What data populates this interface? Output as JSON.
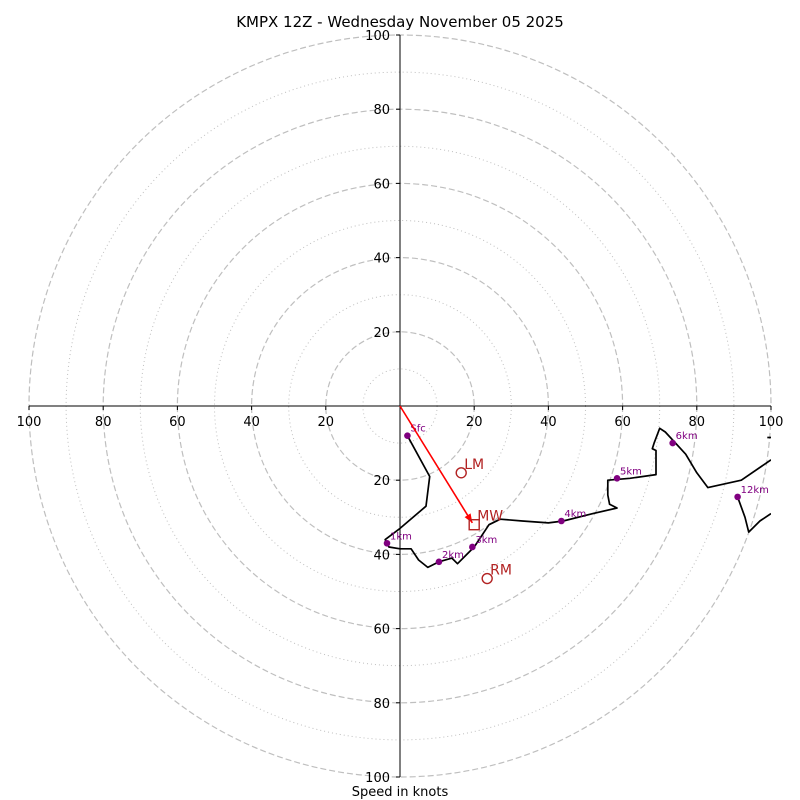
{
  "chart_data": {
    "type": "hodograph",
    "title": "KMPX 12Z - Wednesday November 05 2025",
    "xlabel": "Speed in knots",
    "ylabel": "",
    "units": "knots",
    "xlim": [
      -100,
      100
    ],
    "ylim": [
      -100,
      100
    ],
    "major_rings": [
      20,
      40,
      60,
      80,
      100
    ],
    "minor_rings": [
      10,
      30,
      50,
      70,
      90
    ],
    "x_ticks": [
      {
        "value": -100,
        "label": "100"
      },
      {
        "value": -80,
        "label": "80"
      },
      {
        "value": -60,
        "label": "60"
      },
      {
        "value": -40,
        "label": "40"
      },
      {
        "value": -20,
        "label": "20"
      },
      {
        "value": 20,
        "label": "20"
      },
      {
        "value": 40,
        "label": "40"
      },
      {
        "value": 60,
        "label": "60"
      },
      {
        "value": 80,
        "label": "80"
      },
      {
        "value": 100,
        "label": "100"
      }
    ],
    "y_ticks": [
      {
        "value": 100,
        "label": "100"
      },
      {
        "value": 80,
        "label": "80"
      },
      {
        "value": 60,
        "label": "60"
      },
      {
        "value": 40,
        "label": "40"
      },
      {
        "value": 20,
        "label": "20"
      },
      {
        "value": -20,
        "label": "20"
      },
      {
        "value": -40,
        "label": "40"
      },
      {
        "value": -60,
        "label": "60"
      },
      {
        "value": -80,
        "label": "80"
      },
      {
        "value": -100,
        "label": "100"
      }
    ],
    "hodograph_segments": [
      {
        "name": "profile-main",
        "color": "#000000",
        "points": [
          [
            2,
            -8
          ],
          [
            8,
            -19
          ],
          [
            7,
            -27
          ],
          [
            0,
            -33
          ],
          [
            -4,
            -36
          ],
          [
            -3,
            -38
          ],
          [
            0,
            -38.5
          ],
          [
            3,
            -38.5
          ],
          [
            5,
            -41.5
          ],
          [
            7.5,
            -43.5
          ],
          [
            10.5,
            -42
          ],
          [
            14,
            -41
          ],
          [
            15.5,
            -42.5
          ],
          [
            18,
            -40
          ],
          [
            20,
            -38
          ],
          [
            24,
            -32
          ],
          [
            27,
            -30.5
          ],
          [
            33,
            -31
          ],
          [
            40,
            -31.5
          ],
          [
            44,
            -31
          ],
          [
            52,
            -29
          ],
          [
            58.5,
            -27.5
          ],
          [
            56.5,
            -26.5
          ],
          [
            56,
            -24
          ],
          [
            56,
            -20
          ],
          [
            62,
            -19.5
          ],
          [
            69,
            -18.5
          ],
          [
            69,
            -12
          ],
          [
            68,
            -11.5
          ],
          [
            68.5,
            -10
          ],
          [
            70,
            -6
          ],
          [
            71.5,
            -7
          ],
          [
            77,
            -13
          ],
          [
            80,
            -18
          ],
          [
            83,
            -22
          ],
          [
            92,
            -20
          ],
          [
            100,
            -14.5
          ]
        ]
      },
      {
        "name": "profile-upper",
        "color": "#000000",
        "points": [
          [
            91,
            -24.5
          ],
          [
            93,
            -30
          ],
          [
            94,
            -34
          ],
          [
            97,
            -31
          ],
          [
            100,
            -29
          ]
        ]
      },
      {
        "name": "profile-edge-stub",
        "color": "#000000",
        "points": [
          [
            99,
            -8.5
          ],
          [
            100,
            -8.5
          ]
        ]
      }
    ],
    "height_markers": [
      {
        "label": "Sfc",
        "u": 2,
        "v": -8
      },
      {
        "label": "1km",
        "u": -3.5,
        "v": -37
      },
      {
        "label": "2km",
        "u": 10.5,
        "v": -42
      },
      {
        "label": "3km",
        "u": 19.5,
        "v": -38
      },
      {
        "label": "4km",
        "u": 43.5,
        "v": -31
      },
      {
        "label": "5km",
        "u": 58.5,
        "v": -19.5
      },
      {
        "label": "6km",
        "u": 73.5,
        "v": -10
      },
      {
        "label": "12km",
        "u": 91,
        "v": -24.5
      }
    ],
    "storm_motion": {
      "arrow": {
        "from": [
          0,
          0
        ],
        "to": [
          19.5,
          -31.5
        ],
        "color": "#ff0000"
      },
      "points": [
        {
          "label": "LM",
          "u": 16.5,
          "v": -18,
          "marker": "circle"
        },
        {
          "label": "MW",
          "u": 20,
          "v": -32,
          "marker": "square"
        },
        {
          "label": "RM",
          "u": 23.5,
          "v": -46.5,
          "marker": "circle"
        }
      ]
    },
    "colors": {
      "ring": "#bfbfbf",
      "axis": "#000000",
      "profile": "#000000",
      "marker": "#800080",
      "storm": "#b22222",
      "arrow": "#ff0000"
    }
  }
}
